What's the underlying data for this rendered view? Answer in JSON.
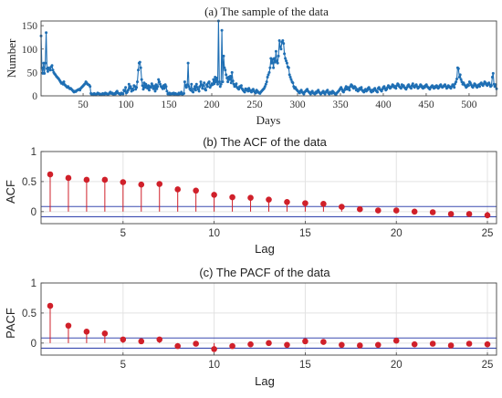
{
  "chart_data": [
    {
      "type": "line",
      "title": "(a) The sample of the data",
      "xlabel": "Days",
      "ylabel": "Number",
      "xlim": [
        1,
        532
      ],
      "ylim": [
        0,
        160
      ],
      "xticks": [
        50,
        100,
        150,
        200,
        250,
        300,
        350,
        400,
        450,
        500
      ],
      "yticks": [
        0,
        50,
        100,
        150
      ],
      "grid": false,
      "color": "#1f6fb4",
      "y": [
        128,
        60,
        48,
        70,
        48,
        70,
        135,
        58,
        52,
        60,
        57,
        55,
        62,
        65,
        55,
        50,
        47,
        45,
        42,
        40,
        38,
        36,
        33,
        30,
        27,
        28,
        25,
        30,
        24,
        22,
        20,
        18,
        20,
        17,
        15,
        16,
        14,
        12,
        10,
        8,
        10,
        9,
        11,
        12,
        13,
        14,
        12,
        16,
        18,
        20,
        22,
        24,
        26,
        30,
        28,
        25,
        24,
        23,
        20,
        5,
        3,
        4,
        2,
        5,
        3,
        2,
        4,
        6,
        5,
        3,
        4,
        2,
        3,
        5,
        4,
        3,
        6,
        5,
        4,
        3,
        4,
        6,
        8,
        5,
        6,
        4,
        3,
        5,
        4,
        8,
        10,
        6,
        5,
        4,
        3,
        6,
        5,
        4,
        12,
        10,
        18,
        6,
        8,
        12,
        25,
        16,
        20,
        10,
        15,
        12,
        22,
        20,
        14,
        18,
        30,
        55,
        70,
        72,
        60,
        35,
        22,
        14,
        28,
        18,
        25,
        20,
        16,
        22,
        12,
        20,
        18,
        26,
        22,
        15,
        20,
        10,
        24,
        15,
        20,
        35,
        30,
        25,
        20,
        18,
        15,
        22,
        16,
        24,
        20,
        10,
        4,
        5,
        6,
        3,
        4,
        5,
        4,
        6,
        3,
        5,
        4,
        3,
        2,
        6,
        4,
        5,
        8,
        3,
        4,
        5,
        30,
        22,
        18,
        24,
        70,
        20,
        15,
        12,
        25,
        10,
        8,
        15,
        20,
        12,
        25,
        18,
        14,
        10,
        20,
        30,
        24,
        16,
        22,
        28,
        14,
        12,
        24,
        20,
        28,
        30,
        18,
        22,
        26,
        24,
        35,
        26,
        40,
        30,
        38,
        25,
        160,
        30,
        20,
        25,
        140,
        30,
        85,
        60,
        55,
        45,
        38,
        30,
        40,
        35,
        42,
        28,
        50,
        32,
        25,
        20,
        22,
        26,
        18,
        16,
        14,
        20,
        18,
        22,
        15,
        12,
        10,
        8,
        15,
        12,
        14,
        10,
        16,
        12,
        10,
        8,
        12,
        14,
        10,
        8,
        6,
        12,
        10,
        8,
        6,
        5,
        8,
        10,
        12,
        14,
        16,
        20,
        25,
        30,
        40,
        45,
        50,
        60,
        80,
        70,
        78,
        60,
        80,
        72,
        95,
        75,
        70,
        85,
        118,
        105,
        100,
        115,
        118,
        112,
        90,
        80,
        75,
        70,
        62,
        60,
        45,
        40,
        35,
        30,
        28,
        20,
        16,
        18,
        14,
        12,
        10,
        8,
        6,
        10,
        12,
        8,
        6,
        4,
        8,
        10,
        12,
        14,
        10,
        8,
        6,
        4,
        8,
        10,
        6,
        5,
        4,
        8,
        6,
        10,
        12,
        8,
        6,
        4,
        6,
        8,
        10,
        6,
        4,
        8,
        10,
        12,
        6,
        4,
        8,
        6,
        5,
        10,
        8,
        6,
        4,
        2,
        6,
        8,
        10,
        12,
        15,
        18,
        14,
        10,
        8,
        12,
        16,
        20,
        14,
        18,
        16,
        12,
        20,
        24,
        22,
        18,
        16,
        20,
        18,
        12,
        14,
        10,
        12,
        16,
        14,
        18,
        12,
        10,
        8,
        12,
        14,
        10,
        12,
        16,
        18,
        14,
        10,
        8,
        12,
        10,
        14,
        16,
        12,
        10,
        8,
        16,
        18,
        14,
        12,
        10,
        14,
        18,
        20,
        16,
        12,
        14,
        18,
        22,
        20,
        16,
        18,
        20,
        24,
        22,
        18,
        20,
        16,
        22,
        26,
        24,
        20,
        18,
        16,
        24,
        20,
        22,
        18,
        16,
        14,
        18,
        22,
        24,
        20,
        18,
        16,
        22,
        26,
        20,
        18,
        22,
        24,
        20,
        16,
        18,
        20,
        24,
        22,
        18,
        16,
        20,
        18,
        22,
        24,
        20,
        18,
        16,
        14,
        18,
        20,
        22,
        18,
        16,
        20,
        18,
        22,
        20,
        16,
        18,
        22,
        24,
        20,
        18,
        20,
        22,
        24,
        20,
        16,
        18,
        22,
        20,
        18,
        16,
        20,
        24,
        22,
        18,
        26,
        30,
        36,
        60,
        58,
        40,
        45,
        35,
        30,
        25,
        28,
        24,
        22,
        18,
        20,
        24,
        22,
        30,
        28,
        24,
        20,
        18,
        22,
        26,
        24,
        20,
        18,
        22,
        24,
        20,
        26,
        28,
        24,
        22,
        26,
        30,
        28,
        24,
        22,
        26,
        28,
        24,
        20,
        22,
        40,
        48,
        25,
        20,
        24,
        15
      ]
    },
    {
      "type": "scatter",
      "subtype": "stem",
      "title": "(b) The ACF of the data",
      "xlabel": "Lag",
      "ylabel": "ACF",
      "xlim": [
        0.5,
        25.5
      ],
      "ylim": [
        -0.2,
        1
      ],
      "xticks": [
        5,
        10,
        15,
        20,
        25
      ],
      "yticks": [
        0,
        0.5,
        1
      ],
      "grid": true,
      "color": "#d0202a",
      "bound_color": "#3b4bb0",
      "confidence_bounds": [
        0.085,
        -0.085
      ],
      "x": [
        1,
        2,
        3,
        4,
        5,
        6,
        7,
        8,
        9,
        10,
        11,
        12,
        13,
        14,
        15,
        16,
        17,
        18,
        19,
        20,
        21,
        22,
        23,
        24,
        25
      ],
      "values": [
        0.62,
        0.56,
        0.53,
        0.53,
        0.49,
        0.45,
        0.46,
        0.37,
        0.35,
        0.28,
        0.24,
        0.23,
        0.2,
        0.16,
        0.14,
        0.13,
        0.08,
        0.04,
        0.02,
        0.02,
        0.0,
        -0.01,
        -0.04,
        -0.04,
        -0.06
      ]
    },
    {
      "type": "scatter",
      "subtype": "stem",
      "title": "(c) The PACF of the data",
      "xlabel": "Lag",
      "ylabel": "PACF",
      "xlim": [
        0.5,
        25.5
      ],
      "ylim": [
        -0.2,
        1
      ],
      "xticks": [
        5,
        10,
        15,
        20,
        25
      ],
      "yticks": [
        0,
        0.5,
        1
      ],
      "grid": true,
      "color": "#d0202a",
      "bound_color": "#3b4bb0",
      "confidence_bounds": [
        0.085,
        -0.085
      ],
      "x": [
        1,
        2,
        3,
        4,
        5,
        6,
        7,
        8,
        9,
        10,
        11,
        12,
        13,
        14,
        15,
        16,
        17,
        18,
        19,
        20,
        21,
        22,
        23,
        24,
        25
      ],
      "values": [
        0.62,
        0.29,
        0.19,
        0.16,
        0.06,
        0.03,
        0.06,
        -0.05,
        -0.01,
        -0.1,
        -0.05,
        -0.02,
        0.0,
        -0.03,
        0.03,
        0.02,
        -0.03,
        -0.04,
        -0.03,
        0.04,
        -0.02,
        -0.01,
        -0.04,
        -0.01,
        -0.02
      ]
    }
  ]
}
